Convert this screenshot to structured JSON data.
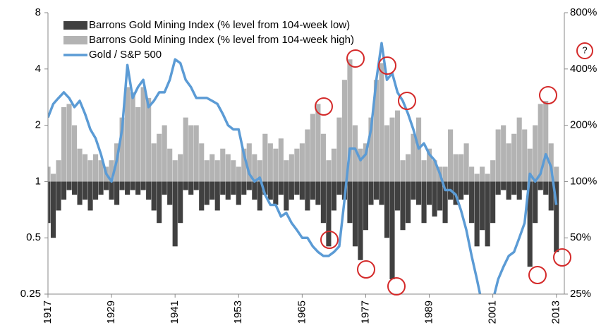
{
  "chart_data": {
    "type": "bar_line",
    "log_scale": true,
    "legend": "upper left",
    "annotation": "?",
    "x": [
      1917,
      1918,
      1919,
      1920,
      1921,
      1922,
      1923,
      1924,
      1925,
      1926,
      1927,
      1928,
      1929,
      1930,
      1931,
      1932,
      1933,
      1934,
      1935,
      1936,
      1937,
      1938,
      1939,
      1940,
      1941,
      1942,
      1943,
      1944,
      1945,
      1946,
      1947,
      1948,
      1949,
      1950,
      1951,
      1952,
      1953,
      1954,
      1955,
      1956,
      1957,
      1958,
      1959,
      1960,
      1961,
      1962,
      1963,
      1964,
      1965,
      1966,
      1967,
      1968,
      1969,
      1970,
      1971,
      1972,
      1973,
      1974,
      1975,
      1976,
      1977,
      1978,
      1979,
      1980,
      1981,
      1982,
      1983,
      1984,
      1985,
      1986,
      1987,
      1988,
      1989,
      1990,
      1991,
      1992,
      1993,
      1994,
      1995,
      1996,
      1997,
      1998,
      1999,
      2000,
      2001,
      2002,
      2003,
      2004,
      2005,
      2006,
      2007,
      2008,
      2009,
      2010,
      2011,
      2012,
      2013
    ],
    "xlim": [
      1917,
      2014.5
    ],
    "xticks": [
      1917,
      1929,
      1941,
      1953,
      1965,
      1977,
      1989,
      2001,
      2013
    ],
    "ylim": [
      0.25,
      8
    ],
    "yticks": [
      0.25,
      0.5,
      1,
      2,
      4,
      8
    ],
    "y2lim": [
      25,
      800
    ],
    "y2ticks": [
      {
        "value": 25,
        "label": "25%"
      },
      {
        "value": 50,
        "label": "50%"
      },
      {
        "value": 100,
        "label": "100%"
      },
      {
        "value": 200,
        "label": "200%"
      },
      {
        "value": 400,
        "label": "400%"
      },
      {
        "value": 800,
        "label": "800%"
      }
    ],
    "series": [
      {
        "name": "Barrons Gold Mining Index (% level from 104-week low)",
        "kind": "bar",
        "color": "#404040",
        "values": [
          0.6,
          0.5,
          0.7,
          0.8,
          0.9,
          0.85,
          0.75,
          0.8,
          0.7,
          0.8,
          0.85,
          0.9,
          0.8,
          0.75,
          0.9,
          0.85,
          0.9,
          0.85,
          0.9,
          0.8,
          0.7,
          0.6,
          0.85,
          0.75,
          0.45,
          0.6,
          0.9,
          0.85,
          0.9,
          0.7,
          0.75,
          0.8,
          0.7,
          0.85,
          0.8,
          0.85,
          0.75,
          0.85,
          0.9,
          0.8,
          0.7,
          0.85,
          0.8,
          0.75,
          0.85,
          0.7,
          0.8,
          0.85,
          0.8,
          0.7,
          0.8,
          0.75,
          0.6,
          0.45,
          0.7,
          0.85,
          0.8,
          0.6,
          0.45,
          0.38,
          0.55,
          0.75,
          0.8,
          0.75,
          0.5,
          0.3,
          0.7,
          0.55,
          0.6,
          0.8,
          0.75,
          0.6,
          0.75,
          0.65,
          0.7,
          0.6,
          0.8,
          0.75,
          0.8,
          0.85,
          0.6,
          0.45,
          0.55,
          0.45,
          0.6,
          0.85,
          0.9,
          0.8,
          0.85,
          0.8,
          0.9,
          0.35,
          0.6,
          0.9,
          0.85,
          0.7,
          0.42
        ]
      },
      {
        "name": "Barrons Gold Mining Index (% level from 104-week high)",
        "kind": "bar",
        "color": "#b3b3b3",
        "values": [
          1.2,
          1.1,
          1.3,
          2.5,
          2.6,
          2.0,
          1.5,
          1.4,
          1.3,
          1.4,
          1.3,
          1.2,
          1.3,
          1.6,
          2.2,
          3.2,
          3.0,
          2.5,
          3.2,
          2.8,
          1.6,
          1.8,
          2.0,
          1.5,
          1.3,
          1.4,
          2.2,
          2.0,
          2.0,
          1.6,
          1.3,
          1.4,
          1.3,
          1.5,
          1.4,
          1.3,
          1.2,
          1.5,
          1.6,
          1.4,
          1.3,
          1.8,
          1.6,
          1.5,
          1.7,
          1.3,
          1.4,
          1.5,
          1.6,
          1.9,
          2.3,
          2.6,
          1.8,
          1.3,
          1.5,
          2.2,
          3.5,
          4.5,
          2.0,
          1.5,
          1.6,
          2.2,
          3.5,
          4.3,
          2.0,
          2.2,
          2.4,
          1.3,
          1.4,
          1.8,
          2.2,
          1.3,
          1.5,
          1.3,
          1.2,
          1.2,
          1.9,
          1.4,
          1.4,
          1.6,
          1.2,
          1.1,
          1.2,
          1.1,
          1.3,
          1.9,
          2.0,
          1.6,
          1.8,
          2.2,
          1.9,
          1.5,
          2.0,
          2.6,
          2.7,
          1.6,
          1.2
        ]
      },
      {
        "name": "Gold / S&P 500",
        "kind": "line",
        "color": "#5b9bd5",
        "values": [
          2.2,
          2.6,
          2.8,
          3.0,
          2.8,
          2.5,
          2.7,
          2.3,
          1.9,
          1.7,
          1.4,
          1.1,
          1.0,
          1.3,
          1.9,
          4.2,
          2.8,
          3.2,
          3.5,
          2.5,
          2.7,
          3.0,
          3.0,
          3.5,
          4.5,
          4.3,
          3.5,
          3.2,
          2.8,
          2.8,
          2.8,
          2.7,
          2.6,
          2.3,
          2.0,
          1.9,
          1.9,
          1.4,
          1.1,
          1.0,
          1.05,
          0.85,
          0.75,
          0.75,
          0.65,
          0.68,
          0.6,
          0.55,
          0.5,
          0.5,
          0.45,
          0.42,
          0.4,
          0.4,
          0.42,
          0.45,
          0.8,
          1.5,
          1.5,
          1.3,
          1.4,
          1.9,
          3.5,
          5.5,
          3.5,
          3.8,
          3.0,
          2.7,
          2.3,
          1.9,
          1.5,
          1.6,
          1.4,
          1.3,
          1.1,
          0.9,
          0.9,
          0.85,
          0.7,
          0.55,
          0.4,
          0.3,
          0.22,
          0.2,
          0.23,
          0.3,
          0.35,
          0.4,
          0.42,
          0.5,
          0.6,
          1.1,
          1.0,
          1.1,
          1.4,
          1.2,
          0.75
        ]
      }
    ]
  }
}
